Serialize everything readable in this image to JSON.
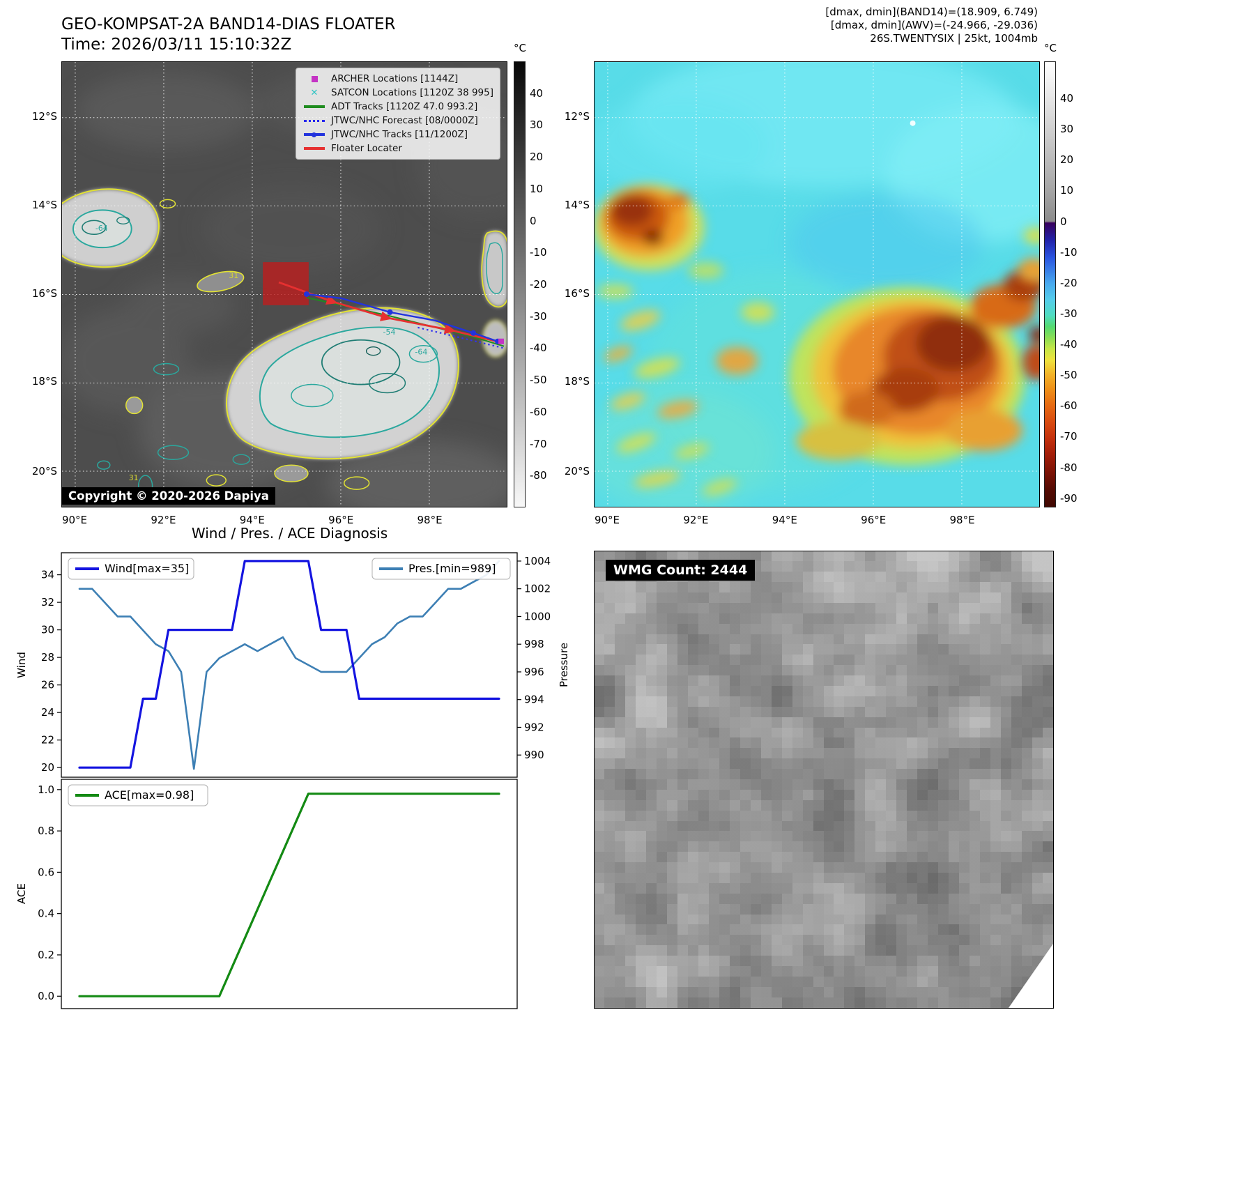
{
  "left_panel": {
    "title": "GEO-KOMPSAT-2A BAND14-DIAS FLOATER",
    "time": "Time: 2026/03/11 15:10:32Z",
    "copyright": "Copyright © 2020-2026 Dapiya",
    "legend": [
      {
        "label": "ARCHER Locations [1144Z]",
        "marker": "square",
        "color": "#c433c4"
      },
      {
        "label": "SATCON Locations [1120Z 38 995]",
        "marker": "x",
        "color": "#2ec4c4"
      },
      {
        "label": "ADT Tracks [1120Z 47.0 993.2]",
        "marker": "line",
        "color": "#1f8c1f"
      },
      {
        "label": "JTWC/NHC Forecast [08/0000Z]",
        "marker": "dotted",
        "color": "#2626ee"
      },
      {
        "label": "JTWC/NHC Tracks [11/1200Z]",
        "marker": "line-dot",
        "color": "#2233dd"
      },
      {
        "label": "Floater Locater",
        "marker": "line",
        "color": "#e63030"
      }
    ],
    "lat_ticks": [
      "12°S",
      "14°S",
      "16°S",
      "18°S",
      "20°S"
    ],
    "lon_ticks": [
      "90°E",
      "92°E",
      "94°E",
      "96°E",
      "98°E"
    ],
    "colorbar": {
      "unit": "°C",
      "range": [
        50,
        -90
      ],
      "ticks": [
        "40",
        "30",
        "20",
        "10",
        "0",
        "-10",
        "-20",
        "-30",
        "-40",
        "-50",
        "-60",
        "-70",
        "-80"
      ]
    },
    "contour_labels": [
      {
        "text": "-64",
        "color": "#2aa89e"
      },
      {
        "text": "31",
        "color": "#d8d832"
      },
      {
        "text": "-54",
        "color": "#2aa89e"
      },
      {
        "text": "-64",
        "color": "#2aa89e"
      },
      {
        "text": "31",
        "color": "#d8d832"
      }
    ]
  },
  "right_panel": {
    "header_lines": [
      "[dmax, dmin](BAND14)=(18.909, 6.749)",
      "[dmax, dmin](AWV)=(-24.966, -29.036)",
      "26S.TWENTYSIX | 25kt, 1004mb"
    ],
    "lat_ticks": [
      "12°S",
      "14°S",
      "16°S",
      "18°S",
      "20°S"
    ],
    "lon_ticks": [
      "90°E",
      "92°E",
      "94°E",
      "96°E",
      "98°E"
    ],
    "colorbar": {
      "unit": "°C",
      "range": [
        52,
        -93
      ],
      "ticks": [
        "40",
        "30",
        "20",
        "10",
        "0",
        "-10",
        "-20",
        "-30",
        "-40",
        "-50",
        "-60",
        "-70",
        "-80",
        "-90"
      ]
    }
  },
  "wmg_panel": {
    "label": "WMG Count: 2444"
  },
  "chart_data": [
    {
      "type": "line",
      "title": "Wind / Pres. / ACE Diagnosis",
      "ylabel": "Wind",
      "y2label": "Pressure",
      "ylim": [
        19.3,
        35.6
      ],
      "y2lim": [
        988.4,
        1004.6
      ],
      "yticks": [
        "20",
        "22",
        "24",
        "26",
        "28",
        "30",
        "32",
        "34"
      ],
      "y2ticks": [
        "990",
        "992",
        "994",
        "996",
        "998",
        "1000",
        "1002",
        "1004"
      ],
      "legend_position": [
        "upper left",
        "upper right"
      ],
      "series": [
        {
          "name": "Wind[max=35]",
          "axis": "left",
          "color": "#1414e0",
          "values": [
            20,
            20,
            20,
            20,
            20,
            25,
            25,
            30,
            30,
            30,
            30,
            30,
            30,
            35,
            35,
            35,
            35,
            35,
            35,
            30,
            30,
            30,
            25,
            25,
            25,
            25,
            25,
            25,
            25,
            25,
            25,
            25,
            25,
            25
          ]
        },
        {
          "name": "Pres.[min=989]",
          "axis": "right",
          "color": "#3d7fb4",
          "values": [
            1002,
            1002,
            1001,
            1000,
            1000,
            999,
            998,
            997.5,
            996,
            989,
            996,
            997,
            997.5,
            998,
            997.5,
            998,
            998.5,
            997,
            996.5,
            996,
            996,
            996,
            997,
            998,
            998.5,
            999.5,
            1000,
            1000,
            1001,
            1002,
            1002,
            1002.5,
            1003,
            1004
          ]
        }
      ]
    },
    {
      "type": "line",
      "ylabel": "ACE",
      "ylim": [
        -0.06,
        1.05
      ],
      "yticks": [
        "0.0",
        "0.2",
        "0.4",
        "0.6",
        "0.8",
        "1.0"
      ],
      "legend_position": "upper left",
      "series": [
        {
          "name": "ACE[max=0.98]",
          "color": "#138a13",
          "values": [
            0,
            0,
            0,
            0,
            0,
            0,
            0,
            0,
            0,
            0,
            0,
            0,
            0.14,
            0.28,
            0.42,
            0.56,
            0.7,
            0.84,
            0.98,
            0.98,
            0.98,
            0.98,
            0.98,
            0.98,
            0.98,
            0.98,
            0.98,
            0.98,
            0.98,
            0.98,
            0.98,
            0.98,
            0.98,
            0.98
          ]
        }
      ]
    }
  ]
}
